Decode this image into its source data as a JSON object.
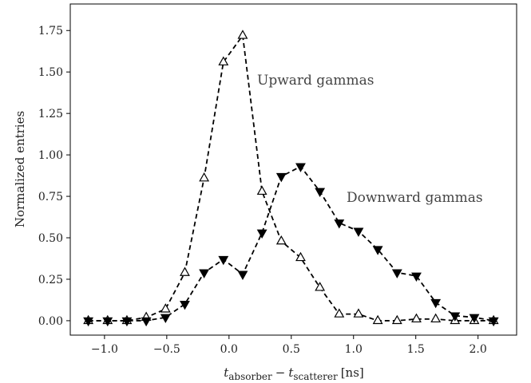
{
  "chart_data": {
    "type": "line",
    "x_label": [
      "t",
      "absorber",
      "−",
      "t",
      "scatterer",
      "[ns]"
    ],
    "y_label": "Normalized entries",
    "x": [
      -1.13,
      -0.975,
      -0.82,
      -0.665,
      -0.51,
      -0.355,
      -0.2,
      -0.045,
      0.11,
      0.265,
      0.42,
      0.575,
      0.73,
      0.885,
      1.04,
      1.195,
      1.35,
      1.505,
      1.66,
      1.815,
      1.97,
      2.125
    ],
    "series": [
      {
        "name": "Upward gammas",
        "color": "#000000",
        "marker": "triangle-up-open",
        "values": [
          0.0,
          0.0,
          0.0,
          0.02,
          0.07,
          0.29,
          0.86,
          1.56,
          1.72,
          0.78,
          0.48,
          0.38,
          0.2,
          0.04,
          0.04,
          0.0,
          0.0,
          0.01,
          0.01,
          0.0,
          0.0,
          0.0
        ]
      },
      {
        "name": "Downward gammas",
        "color": "#000000",
        "marker": "triangle-down-filled",
        "values": [
          0.0,
          0.0,
          0.0,
          0.0,
          0.02,
          0.1,
          0.29,
          0.37,
          0.28,
          0.53,
          0.87,
          0.93,
          0.78,
          0.59,
          0.54,
          0.43,
          0.29,
          0.27,
          0.11,
          0.03,
          0.02,
          0.0
        ]
      }
    ],
    "xlim": [
      -1.275,
      2.31
    ],
    "ylim": [
      -0.087,
      1.91
    ],
    "xticks": [
      {
        "value": -1.0,
        "label": "−1.0"
      },
      {
        "value": -0.5,
        "label": "−0.5"
      },
      {
        "value": 0.0,
        "label": "0.0"
      },
      {
        "value": 0.5,
        "label": "0.5"
      },
      {
        "value": 1.0,
        "label": "1.0"
      },
      {
        "value": 1.5,
        "label": "1.5"
      },
      {
        "value": 2.0,
        "label": "2.0"
      }
    ],
    "yticks": [
      {
        "value": 0,
        "label": "0.00"
      },
      {
        "value": 0.25,
        "label": "0.25"
      },
      {
        "value": 0.5,
        "label": "0.50"
      },
      {
        "value": 0.75,
        "label": "0.75"
      },
      {
        "value": 1.0,
        "label": "1.00"
      },
      {
        "value": 1.25,
        "label": "1.25"
      },
      {
        "value": 1.5,
        "label": "1.50"
      },
      {
        "value": 1.75,
        "label": "1.75"
      }
    ],
    "grid": false
  }
}
